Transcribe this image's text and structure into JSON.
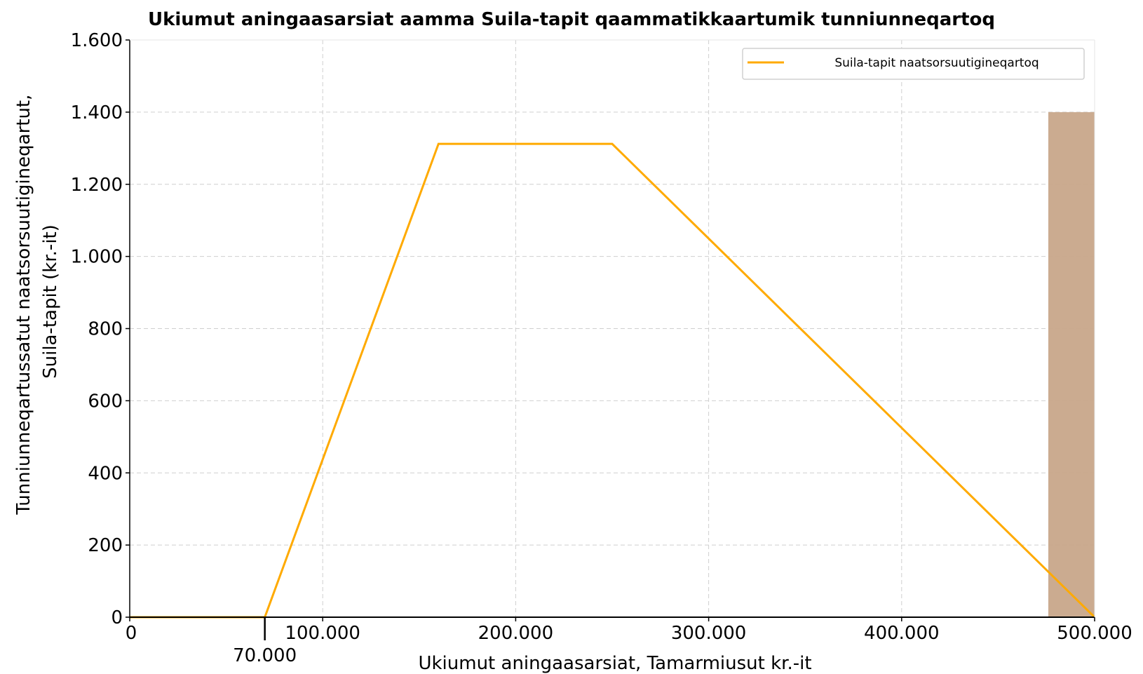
{
  "chart_data": {
    "type": "line",
    "title": "Ukiumut aningaasarsiat aamma Suila-tapit qaammatikkaartumik tunniunneqartoq",
    "xlabel": "Ukiumut aningaasarsiat, Tamarmiusut kr.-it",
    "ylabel_lines": [
      "Tunniunneqartussatut naatsorsuutigineqartut,",
      "Suila-tapit (kr.-it)"
    ],
    "xlim": [
      0,
      500000
    ],
    "ylim": [
      0,
      1600
    ],
    "x_ticks": [
      0,
      100000,
      200000,
      300000,
      400000,
      500000
    ],
    "x_tick_labels": [
      "0",
      "100.000",
      "200.000",
      "300.000",
      "400.000",
      "500.000"
    ],
    "y_ticks": [
      0,
      200,
      400,
      600,
      800,
      1000,
      1200,
      1400,
      1600
    ],
    "y_tick_labels": [
      "0",
      "200",
      "400",
      "600",
      "800",
      "1.000",
      "1.200",
      "1.400",
      "1.600"
    ],
    "grid": true,
    "legend_position": "top-right",
    "series": [
      {
        "name": "Suila-tapit naatsorsuutigineqartoq",
        "color": "#FFAA00",
        "x": [
          0,
          70000,
          160000,
          250000,
          500000
        ],
        "y": [
          0,
          0,
          1312,
          1312,
          0
        ]
      }
    ],
    "annotations": [
      {
        "type": "vline_marker",
        "x": 70000,
        "label": "70.000"
      },
      {
        "type": "shaded_bar",
        "x_start": 476000,
        "x_end": 500000,
        "y_top": 1400,
        "color": "#C8A68A"
      }
    ]
  }
}
